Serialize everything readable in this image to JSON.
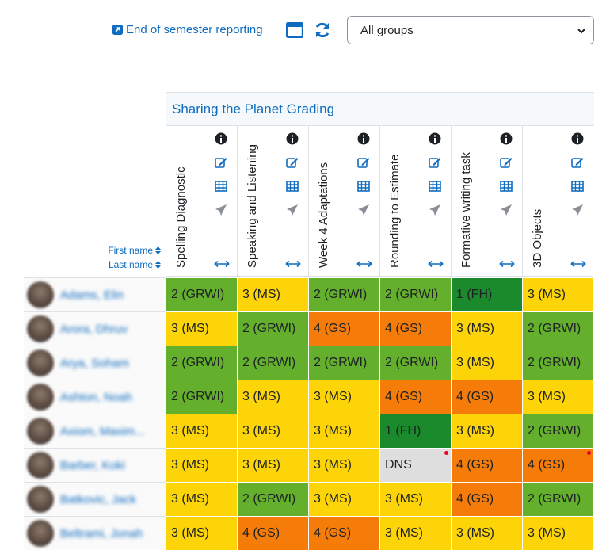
{
  "toolbar": {
    "report_link": "End of semester reporting",
    "group_select": "All groups"
  },
  "category": "Sharing the Planet Grading",
  "sort": {
    "first": "First name",
    "last": "Last name"
  },
  "columns": [
    "Spelling Diagnostic",
    "Speaking and Listening",
    "Week 4 Adaptations",
    "Rounding to Estimate",
    "Formative writing task",
    "3D Objects"
  ],
  "grade_colors": {
    "GRWI": "#64b02c",
    "MS": "#fcd408",
    "GS": "#f57c08",
    "FH": "#1a8a2c",
    "DNS": "#dedede"
  },
  "rows": [
    {
      "name": "Adams, Elin",
      "grades": [
        "2 (GRWI)",
        "3 (MS)",
        "2 (GRWI)",
        "2 (GRWI)",
        "1 (FH)",
        "3 (MS)"
      ]
    },
    {
      "name": "Arora, Dhruv",
      "grades": [
        "3 (MS)",
        "2 (GRWI)",
        "4 (GS)",
        "4 (GS)",
        "3 (MS)",
        "2 (GRWI)"
      ]
    },
    {
      "name": "Arya, Soham",
      "grades": [
        "2 (GRWI)",
        "2 (GRWI)",
        "2 (GRWI)",
        "2 (GRWI)",
        "3 (MS)",
        "2 (GRWI)"
      ]
    },
    {
      "name": "Ashton, Noah",
      "grades": [
        "2 (GRWI)",
        "3 (MS)",
        "3 (MS)",
        "4 (GS)",
        "4 (GS)",
        "3 (MS)"
      ]
    },
    {
      "name": "Axiom, Maxim...",
      "grades": [
        "3 (MS)",
        "3 (MS)",
        "3 (MS)",
        "1 (FH)",
        "3 (MS)",
        "2 (GRWI)"
      ]
    },
    {
      "name": "Barber, Koki",
      "grades": [
        "3 (MS)",
        "3 (MS)",
        "3 (MS)",
        "DNS",
        "4 (GS)",
        "4 (GS)"
      ],
      "flags": [
        false,
        false,
        false,
        true,
        false,
        true
      ]
    },
    {
      "name": "Batkovic, Jack",
      "grades": [
        "3 (MS)",
        "2 (GRWI)",
        "3 (MS)",
        "3 (MS)",
        "4 (GS)",
        "2 (GRWI)"
      ]
    },
    {
      "name": "Beltrami, Jonah",
      "grades": [
        "3 (MS)",
        "4 (GS)",
        "4 (GS)",
        "3 (MS)",
        "3 (MS)",
        "3 (MS)"
      ]
    }
  ]
}
